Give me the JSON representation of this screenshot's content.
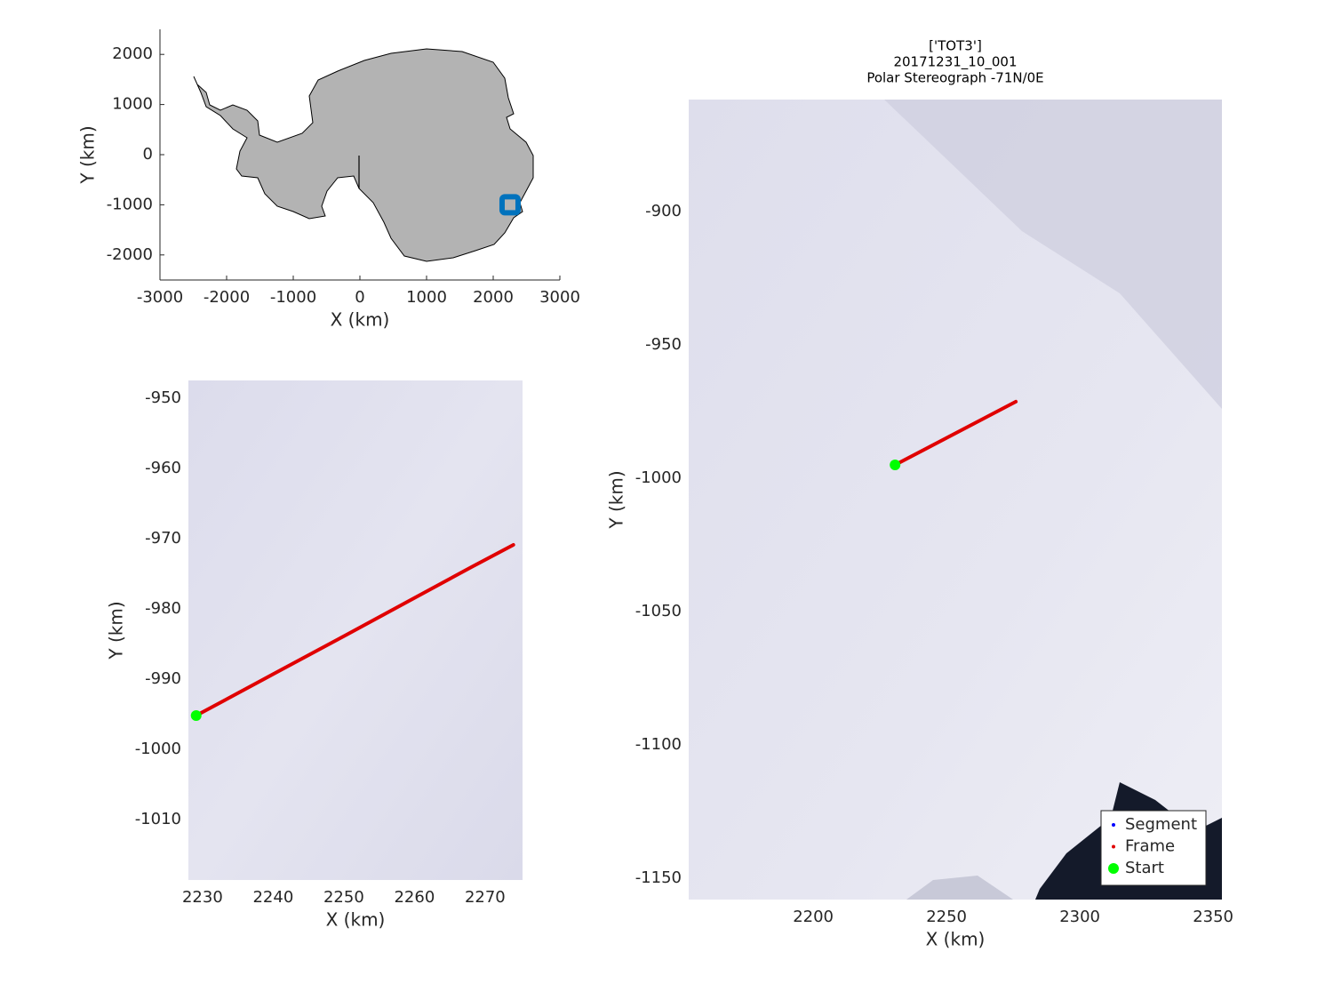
{
  "chart_data": [
    {
      "type": "map",
      "xlabel": "X (km)",
      "ylabel": "Y (km)",
      "xlim": [
        -3000,
        3000
      ],
      "xticks": [
        -3000,
        -2000,
        -1000,
        0,
        1000,
        2000,
        3000
      ],
      "ylim": [
        -2500,
        2500
      ],
      "yticks": [
        -2000,
        -1000,
        0,
        1000,
        2000
      ],
      "series": [
        {
          "color": "#0072bd",
          "style": "square",
          "x": [
            2253
          ],
          "values": [
            -1000
          ]
        }
      ]
    },
    {
      "type": "line",
      "xlabel": "X (km)",
      "ylabel": "Y (km)",
      "xlim": [
        2228,
        2275.3
      ],
      "xticks": [
        2230,
        2240,
        2250,
        2260,
        2270
      ],
      "ylim": [
        -1018.6,
        -947.5
      ],
      "yticks": [
        -1010,
        -1000,
        -990,
        -980,
        -970,
        -960,
        -950
      ],
      "series": [
        {
          "color": "#e00000",
          "style": "line",
          "x": [
            2229.1,
            2240,
            2250,
            2259,
            2268,
            2274
          ],
          "values": [
            -995.2,
            -989.3,
            -983.9,
            -979.0,
            -974.1,
            -970.9
          ]
        },
        {
          "color": "#00ff00",
          "style": "marker",
          "x": [
            2229.1
          ],
          "values": [
            -995.2
          ]
        }
      ]
    },
    {
      "type": "line",
      "title": [
        "['TOT3']",
        "20171231_10_001",
        "Polar Stereograph -71N/0E"
      ],
      "xlabel": "X (km)",
      "ylabel": "Y (km)",
      "xlim": [
        2153.3,
        2353.3
      ],
      "xticks": [
        2200,
        2250,
        2300,
        2350
      ],
      "ylim": [
        -1158,
        -858
      ],
      "yticks": [
        -1150,
        -1100,
        -1050,
        -1000,
        -950,
        -900
      ],
      "legend": "southeast",
      "series": [
        {
          "name": "Segment",
          "color": "#0000ff",
          "style": "dots",
          "x": [],
          "values": []
        },
        {
          "name": "Frame",
          "color": "#e00000",
          "style": "line",
          "x": [
            2230.7,
            2276
          ],
          "values": [
            -995,
            -971.3
          ]
        },
        {
          "name": "Start",
          "color": "#00ff00",
          "style": "marker",
          "x": [
            2230.7
          ],
          "values": [
            -995
          ]
        }
      ]
    }
  ]
}
